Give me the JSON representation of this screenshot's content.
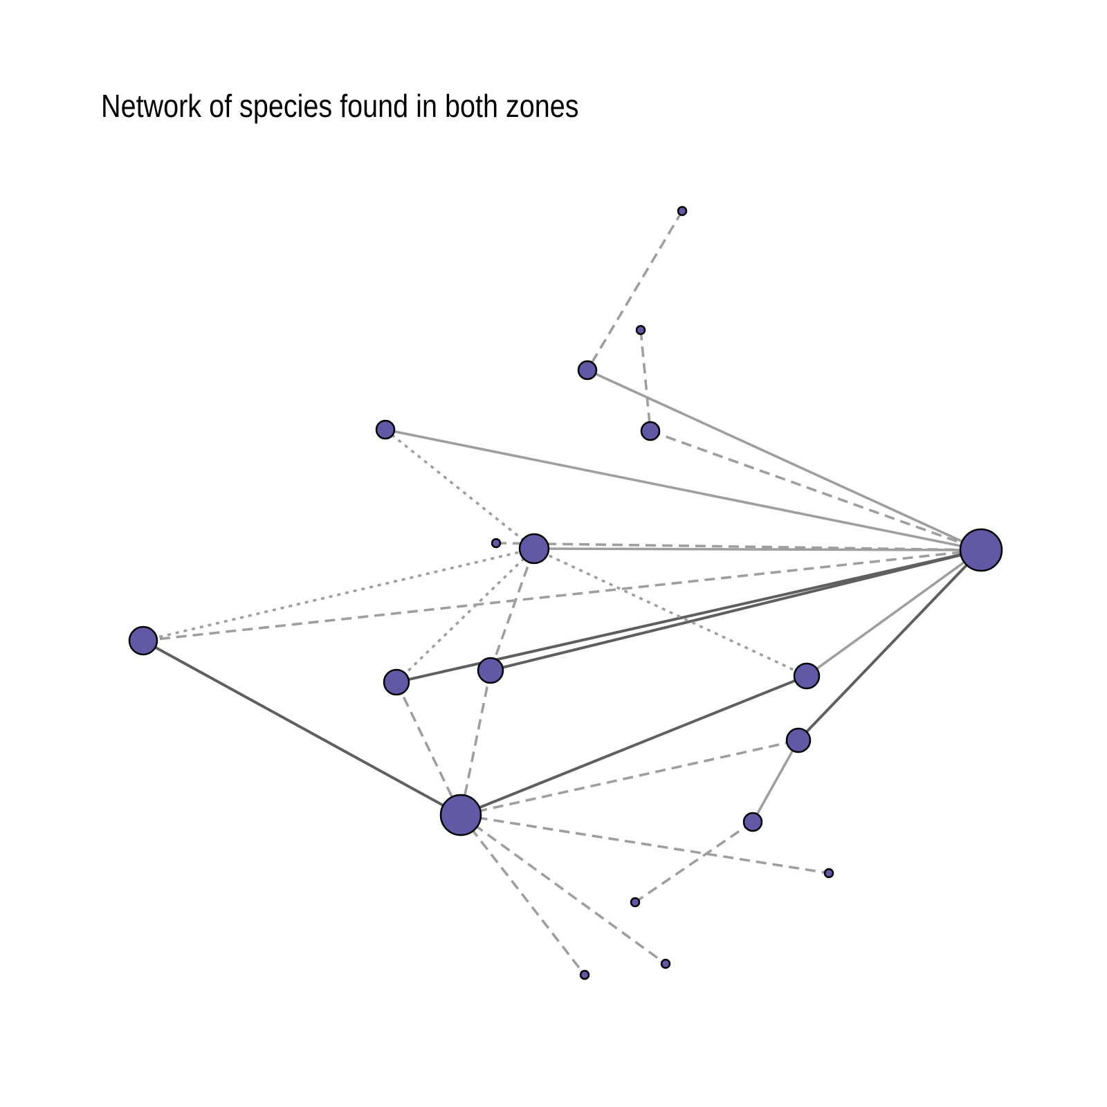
{
  "title": "Network of species found in both zones",
  "colors": {
    "node_fill": "#6159a6",
    "node_stroke": "#000000",
    "edge_light": "#9e9e9e",
    "edge_dark": "#5f5f5f",
    "background": "#ffffff"
  },
  "network": {
    "edge_styles": [
      "solid",
      "dashed",
      "dotted"
    ],
    "nodes": [
      {
        "id": "hub-right"
      },
      {
        "id": "hub-bottom"
      },
      {
        "id": "center"
      },
      {
        "id": "left"
      },
      {
        "id": "mid-left"
      },
      {
        "id": "mid"
      },
      {
        "id": "right-upper"
      },
      {
        "id": "right-lower"
      },
      {
        "id": "lower-right"
      },
      {
        "id": "top-upper"
      },
      {
        "id": "top-left"
      },
      {
        "id": "top-right"
      },
      {
        "id": "peak"
      },
      {
        "id": "small-top"
      },
      {
        "id": "dot-center"
      },
      {
        "id": "leaf-right"
      },
      {
        "id": "leaf-lower"
      },
      {
        "id": "leaf-bottom-right"
      },
      {
        "id": "leaf-bottom"
      }
    ],
    "edges": [
      {
        "source": "top-upper",
        "target": "hub-right",
        "style": "solid",
        "shade": "light"
      },
      {
        "source": "top-left",
        "target": "hub-right",
        "style": "solid",
        "shade": "light"
      },
      {
        "source": "top-right",
        "target": "hub-right",
        "style": "dashed",
        "shade": "light"
      },
      {
        "source": "center",
        "target": "hub-right",
        "style": "solid",
        "shade": "light"
      },
      {
        "source": "dot-center",
        "target": "hub-right",
        "style": "dashed",
        "shade": "light"
      },
      {
        "source": "left",
        "target": "hub-right",
        "style": "dashed",
        "shade": "light"
      },
      {
        "source": "mid-left",
        "target": "hub-right",
        "style": "solid",
        "shade": "dark"
      },
      {
        "source": "mid",
        "target": "hub-right",
        "style": "solid",
        "shade": "dark"
      },
      {
        "source": "right-upper",
        "target": "hub-right",
        "style": "solid",
        "shade": "light"
      },
      {
        "source": "right-lower",
        "target": "hub-right",
        "style": "solid",
        "shade": "dark"
      },
      {
        "source": "peak",
        "target": "top-upper",
        "style": "dashed",
        "shade": "light"
      },
      {
        "source": "small-top",
        "target": "top-right",
        "style": "dashed",
        "shade": "light"
      },
      {
        "source": "top-left",
        "target": "center",
        "style": "dotted",
        "shade": "light"
      },
      {
        "source": "left",
        "target": "center",
        "style": "dotted",
        "shade": "light"
      },
      {
        "source": "mid-left",
        "target": "center",
        "style": "dotted",
        "shade": "light"
      },
      {
        "source": "mid",
        "target": "center",
        "style": "dashed",
        "shade": "light"
      },
      {
        "source": "center",
        "target": "right-upper",
        "style": "dotted",
        "shade": "light"
      },
      {
        "source": "left",
        "target": "hub-bottom",
        "style": "solid",
        "shade": "dark"
      },
      {
        "source": "mid-left",
        "target": "hub-bottom",
        "style": "dashed",
        "shade": "light"
      },
      {
        "source": "mid",
        "target": "hub-bottom",
        "style": "dashed",
        "shade": "light"
      },
      {
        "source": "hub-bottom",
        "target": "right-upper",
        "style": "solid",
        "shade": "dark"
      },
      {
        "source": "hub-bottom",
        "target": "right-lower",
        "style": "dashed",
        "shade": "light"
      },
      {
        "source": "hub-bottom",
        "target": "leaf-right",
        "style": "dashed",
        "shade": "light"
      },
      {
        "source": "hub-bottom",
        "target": "leaf-bottom-right",
        "style": "dashed",
        "shade": "light"
      },
      {
        "source": "hub-bottom",
        "target": "leaf-bottom",
        "style": "dashed",
        "shade": "light"
      },
      {
        "source": "right-lower",
        "target": "lower-right",
        "style": "solid",
        "shade": "light"
      },
      {
        "source": "lower-right",
        "target": "leaf-lower",
        "style": "dashed",
        "shade": "light"
      }
    ]
  }
}
